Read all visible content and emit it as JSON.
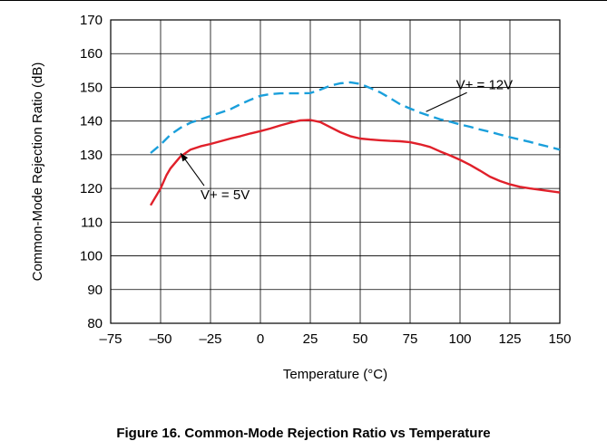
{
  "caption": "Figure 16. Common-Mode Rejection Ratio vs Temperature",
  "chart_data": {
    "type": "line",
    "title": "",
    "xlabel": "Temperature (°C)",
    "ylabel": "Common-Mode Rejection Ratio (dB)",
    "xlim": [
      -75,
      150
    ],
    "ylim": [
      80,
      170
    ],
    "xticks": [
      "–75",
      "–50",
      "–25",
      "0",
      "25",
      "50",
      "75",
      "100",
      "125",
      "150"
    ],
    "yticks": [
      "80",
      "90",
      "100",
      "110",
      "120",
      "130",
      "140",
      "150",
      "160",
      "170"
    ],
    "grid": true,
    "series": [
      {
        "name": "V+ = 12V",
        "color": "#1a9fdb",
        "style": "dashed",
        "x": [
          -55,
          -50,
          -45,
          -40,
          -35,
          -30,
          -25,
          -20,
          -15,
          -10,
          -5,
          0,
          5,
          10,
          15,
          20,
          25,
          30,
          35,
          40,
          45,
          50,
          55,
          60,
          65,
          70,
          75,
          80,
          85,
          90,
          95,
          100,
          105,
          110,
          115,
          120,
          125,
          130,
          135,
          140,
          145,
          150
        ],
        "y": [
          130.5,
          133,
          136,
          138,
          139.5,
          140.5,
          141.5,
          142.5,
          143.5,
          145,
          146.3,
          147.5,
          148,
          148.2,
          148.2,
          148.2,
          148.3,
          149.3,
          150.5,
          151.2,
          151.5,
          151,
          149.8,
          148.5,
          146.8,
          145,
          143.7,
          142.5,
          141.5,
          140.5,
          139.8,
          139,
          138.3,
          137.5,
          136.8,
          136,
          135.2,
          134.5,
          133.8,
          133,
          132.3,
          131.5
        ]
      },
      {
        "name": "V+ = 5V",
        "color": "#e0202a",
        "style": "solid",
        "x": [
          -55,
          -50,
          -47,
          -45,
          -40,
          -35,
          -30,
          -25,
          -20,
          -15,
          -10,
          -5,
          0,
          5,
          10,
          15,
          20,
          25,
          30,
          35,
          40,
          45,
          50,
          55,
          60,
          65,
          70,
          75,
          80,
          85,
          90,
          95,
          100,
          105,
          110,
          115,
          120,
          125,
          130,
          135,
          140,
          145,
          150
        ],
        "y": [
          115,
          120,
          124,
          126,
          129.5,
          131.5,
          132.5,
          133.2,
          134,
          134.8,
          135.5,
          136.3,
          137,
          137.8,
          138.7,
          139.5,
          140.2,
          140.3,
          139.7,
          138.2,
          136.7,
          135.5,
          134.8,
          134.5,
          134.3,
          134.1,
          134,
          133.7,
          133.1,
          132.3,
          131,
          129.8,
          128.5,
          127,
          125.3,
          123.5,
          122.2,
          121.2,
          120.5,
          120,
          119.6,
          119.2,
          118.8
        ]
      }
    ],
    "annotations": [
      {
        "text": "V+ = 12V",
        "series": 0,
        "at_x": 83,
        "at_y": 142.8,
        "label_x": 98,
        "label_y": 149.5
      },
      {
        "text": "V+ = 5V",
        "series": 1,
        "at_x": -40,
        "at_y": 130.5,
        "label_x": -30,
        "label_y": 116.8
      }
    ]
  }
}
